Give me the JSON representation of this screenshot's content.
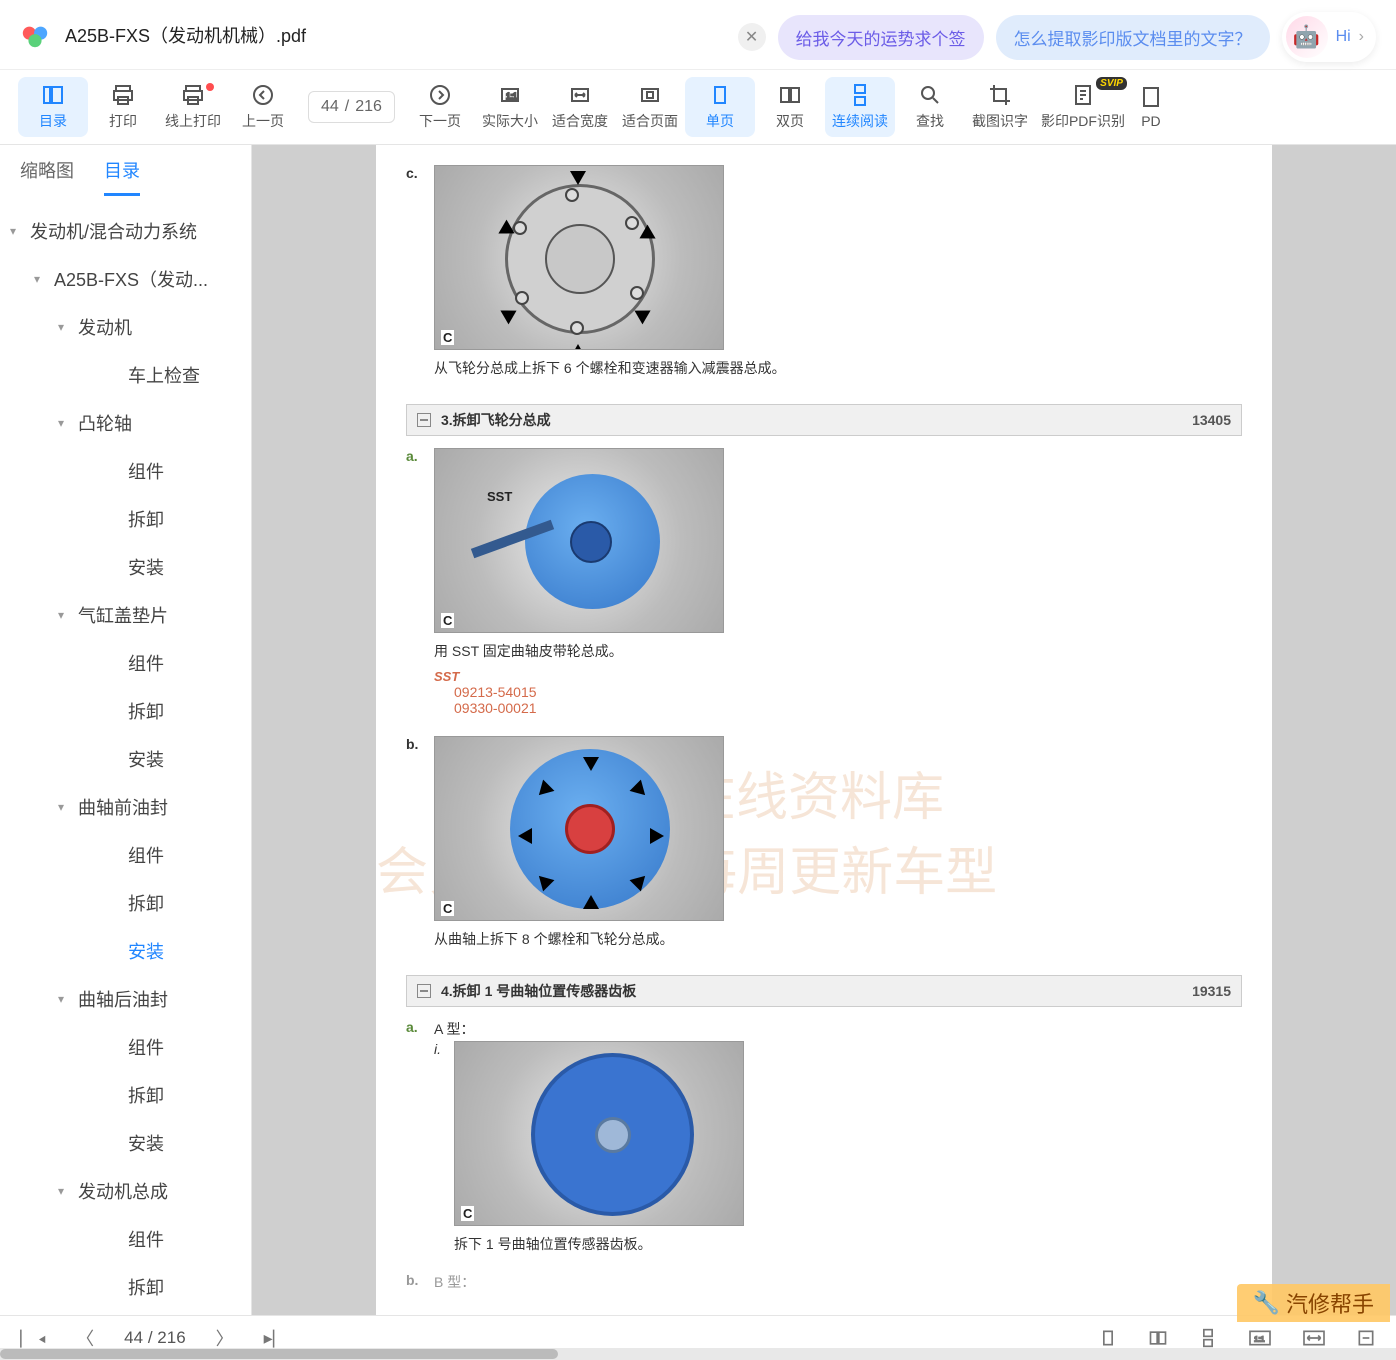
{
  "title": "A25B-FXS（发动机机械）.pdf",
  "suggestions": {
    "pill1": "给我今天的运势求个签",
    "pill2": "怎么提取影印版文档里的文字？",
    "hi": "Hi"
  },
  "toolbar": {
    "toc": "目录",
    "print": "打印",
    "onlinePrint": "线上打印",
    "prev": "上一页",
    "next": "下一页",
    "actual": "实际大小",
    "fitw": "适合宽度",
    "fitp": "适合页面",
    "single": "单页",
    "double": "双页",
    "continuous": "连续阅读",
    "find": "查找",
    "ocr": "截图识字",
    "pdfocr": "影印PDF识别",
    "pdl": "PD",
    "pageCur": "44",
    "pageSep": "/",
    "pageTotal": "216"
  },
  "sidebar": {
    "tabThumb": "缩略图",
    "tabToc": "目录",
    "items": [
      {
        "lv": 0,
        "has": true,
        "label": "发动机/混合动力系统"
      },
      {
        "lv": 1,
        "has": true,
        "label": "A25B-FXS（发动..."
      },
      {
        "lv": 2,
        "has": true,
        "label": "发动机"
      },
      {
        "lv": 3,
        "has": false,
        "label": "车上检查"
      },
      {
        "lv": 2,
        "has": true,
        "label": "凸轮轴"
      },
      {
        "lv": 3,
        "has": false,
        "label": "组件"
      },
      {
        "lv": 3,
        "has": false,
        "label": "拆卸"
      },
      {
        "lv": 3,
        "has": false,
        "label": "安装"
      },
      {
        "lv": 2,
        "has": true,
        "label": "气缸盖垫片"
      },
      {
        "lv": 3,
        "has": false,
        "label": "组件"
      },
      {
        "lv": 3,
        "has": false,
        "label": "拆卸"
      },
      {
        "lv": 3,
        "has": false,
        "label": "安装"
      },
      {
        "lv": 2,
        "has": true,
        "label": "曲轴前油封"
      },
      {
        "lv": 3,
        "has": false,
        "label": "组件"
      },
      {
        "lv": 3,
        "has": false,
        "label": "拆卸"
      },
      {
        "lv": 3,
        "has": false,
        "label": "安装",
        "selected": true
      },
      {
        "lv": 2,
        "has": true,
        "label": "曲轴后油封"
      },
      {
        "lv": 3,
        "has": false,
        "label": "组件"
      },
      {
        "lv": 3,
        "has": false,
        "label": "拆卸"
      },
      {
        "lv": 3,
        "has": false,
        "label": "安装"
      },
      {
        "lv": 2,
        "has": true,
        "label": "发动机总成"
      },
      {
        "lv": 3,
        "has": false,
        "label": "组件"
      },
      {
        "lv": 3,
        "has": false,
        "label": "拆卸"
      },
      {
        "lv": 3,
        "has": false,
        "label": "安装"
      }
    ]
  },
  "doc": {
    "fig_c_label": "C",
    "step_c_letter": "c.",
    "step_c_text": "从飞轮分总成上拆下 6 个螺栓和变速器输入减震器总成。",
    "section3_title": "3.拆卸飞轮分总成",
    "section3_code": "13405",
    "step_a_letter": "a.",
    "step_a_text": "用 SST 固定曲轴皮带轮总成。",
    "sst_label": "SST",
    "sst_num1": "09213-54015",
    "sst_num2": "09330-00021",
    "sst_text": "SST",
    "step_b_letter": "b.",
    "step_b_text": "从曲轴上拆下 8 个螺栓和飞轮分总成。",
    "section4_title": "4.拆卸 1 号曲轴位置传感器齿板",
    "section4_code": "19315",
    "step_a2_letter": "a.",
    "step_a2_type": "A 型：",
    "step_i_letter": "i.",
    "step_i_text": "拆下 1 号曲轴位置传感器齿板。",
    "step_b2_letter": "b.",
    "step_b2_type": "B 型：",
    "watermark1": "汽修帮手在线资料库",
    "watermark2": "会员199/年，每周更新车型",
    "corner_watermark": "汽修帮手",
    "colors": {
      "blue_disc": "#3577c9",
      "accent": "#2186ff",
      "sst_orange": "#d46a4a"
    }
  },
  "footer": {
    "pageCur": "44",
    "pageSep": "/",
    "pageTotal": "216"
  }
}
